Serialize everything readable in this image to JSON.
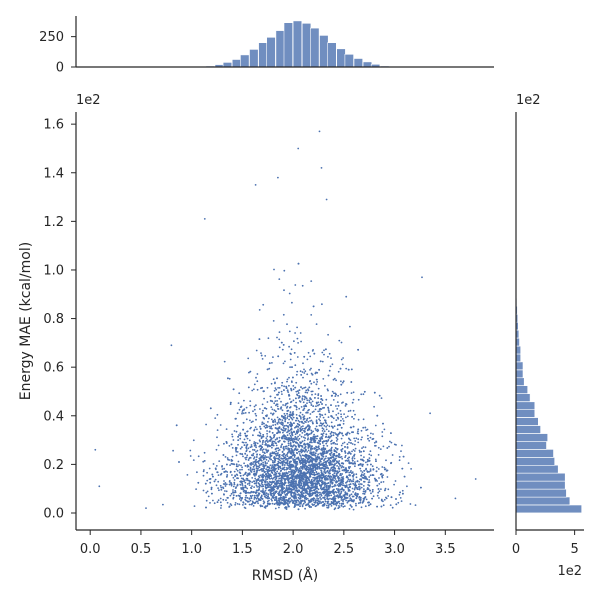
{
  "chart_data": [
    {
      "type": "scatter",
      "role": "joint",
      "xlabel": "RMSD (Å)",
      "ylabel": "Energy MAE (kcal/mol)",
      "y_offset_text": "1e2",
      "x_ticks": [
        0.0,
        0.5,
        1.0,
        1.5,
        2.0,
        2.5,
        3.0,
        3.5
      ],
      "x_tick_labels": [
        "0.0",
        "0.5",
        "1.0",
        "1.5",
        "2.0",
        "2.5",
        "3.0",
        "3.5"
      ],
      "y_ticks": [
        0.0,
        0.2,
        0.4,
        0.6,
        0.8,
        1.0,
        1.2,
        1.4,
        1.6
      ],
      "y_tick_labels": [
        "0.0",
        "0.2",
        "0.4",
        "0.6",
        "0.8",
        "1.0",
        "1.2",
        "1.4",
        "1.6"
      ],
      "xlim": [
        -0.14,
        3.98
      ],
      "ylim": [
        -0.07,
        1.65
      ],
      "y_units_note": "values in units of 1e2 kcal/mol",
      "point_color": "#4c72b0",
      "n_points": 5000,
      "distribution": {
        "x_mean": 2.07,
        "x_sd": 0.36,
        "y_shape": "right-skewed, mode near 0.05-0.25, sparse tail to ~1.57"
      },
      "outliers": [
        {
          "x": 0.05,
          "y": 0.26
        },
        {
          "x": 0.09,
          "y": 0.11
        },
        {
          "x": 0.55,
          "y": 0.02
        },
        {
          "x": 0.8,
          "y": 0.69
        },
        {
          "x": 1.13,
          "y": 1.21
        },
        {
          "x": 1.63,
          "y": 1.35
        },
        {
          "x": 2.05,
          "y": 1.5
        },
        {
          "x": 2.26,
          "y": 1.57
        },
        {
          "x": 2.28,
          "y": 1.42
        },
        {
          "x": 1.85,
          "y": 1.38
        },
        {
          "x": 2.33,
          "y": 1.29
        },
        {
          "x": 3.27,
          "y": 0.97
        },
        {
          "x": 3.6,
          "y": 0.06
        },
        {
          "x": 3.8,
          "y": 0.14
        },
        {
          "x": 3.35,
          "y": 0.41
        }
      ]
    },
    {
      "type": "bar",
      "role": "marginal-x-histogram",
      "y_ticks": [
        0,
        250
      ],
      "y_tick_labels": [
        "0",
        "250"
      ],
      "ylim": [
        0,
        420
      ],
      "bin_width": 0.0857,
      "bin_starts": [
        1.14,
        1.23,
        1.31,
        1.4,
        1.48,
        1.57,
        1.66,
        1.74,
        1.83,
        1.91,
        2.0,
        2.09,
        2.17,
        2.26,
        2.34,
        2.43,
        2.51,
        2.6,
        2.69,
        2.77,
        2.86
      ],
      "values": [
        8,
        20,
        38,
        62,
        100,
        145,
        200,
        245,
        300,
        365,
        380,
        360,
        320,
        260,
        200,
        150,
        105,
        70,
        42,
        22,
        8
      ]
    },
    {
      "type": "bar",
      "role": "marginal-y-histogram",
      "orientation": "horizontal",
      "x_ticks": [
        0,
        5
      ],
      "x_tick_labels": [
        "0",
        "5"
      ],
      "x_offset_text": "1e2",
      "offset_text_top": "1e2",
      "xlim": [
        0,
        5.8
      ],
      "bin_width": 0.0327,
      "bin_starts": [
        0.0,
        0.033,
        0.065,
        0.098,
        0.131,
        0.164,
        0.196,
        0.229,
        0.262,
        0.294,
        0.327,
        0.36,
        0.393,
        0.425,
        0.458,
        0.491,
        0.524,
        0.556,
        0.589,
        0.622,
        0.654,
        0.687,
        0.72,
        0.753,
        0.785,
        0.818,
        0.851,
        0.884,
        0.916,
        0.949
      ],
      "values": [
        5.6,
        4.6,
        4.3,
        4.2,
        4.2,
        3.6,
        3.3,
        3.2,
        2.6,
        2.7,
        2.1,
        1.9,
        1.6,
        1.6,
        1.2,
        1.0,
        0.7,
        0.6,
        0.6,
        0.4,
        0.4,
        0.3,
        0.25,
        0.2,
        0.15,
        0.12,
        0.08,
        0.06,
        0.04,
        0.03
      ]
    }
  ]
}
